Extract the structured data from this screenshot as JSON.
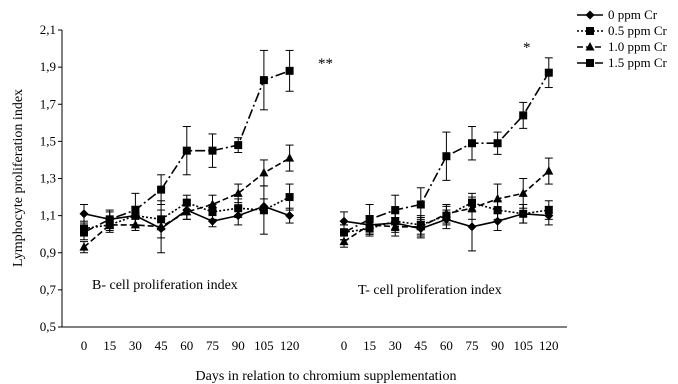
{
  "chart_data": {
    "type": "line",
    "xlabel": "Days in relation to chromium supplementation",
    "ylabel": "Lymphocyte proliferation index",
    "ylim": [
      0.5,
      2.1
    ],
    "yticks": [
      "0,5",
      "0,7",
      "0,9",
      "1,1",
      "1,3",
      "1,5",
      "1,7",
      "1,9",
      "2,1"
    ],
    "grid": false,
    "legend_position": "top-right",
    "series_legend": [
      {
        "name": "0 ppm Cr",
        "marker": "diamond",
        "dash": "solid"
      },
      {
        "name": "0.5 ppm Cr",
        "marker": "square",
        "dash": "dotted"
      },
      {
        "name": "1.0 ppm Cr",
        "marker": "triangle",
        "dash": "dashed"
      },
      {
        "name": "1.5 ppm Cr",
        "marker": "square",
        "dash": "dashdot"
      }
    ],
    "panels": [
      {
        "label": "B- cell proliferation index",
        "significance": "**",
        "x": [
          "0",
          "15",
          "30",
          "45",
          "60",
          "75",
          "90",
          "105",
          "120"
        ],
        "series": [
          {
            "name": "0 ppm Cr",
            "values": [
              1.11,
              1.08,
              1.1,
              1.03,
              1.13,
              1.07,
              1.1,
              1.15,
              1.1
            ],
            "errors": [
              0.05,
              0.05,
              0.05,
              0.05,
              0.05,
              0.03,
              0.05,
              0.04,
              0.04
            ]
          },
          {
            "name": "0.5 ppm Cr",
            "values": [
              1.03,
              1.05,
              1.1,
              1.08,
              1.17,
              1.12,
              1.14,
              1.13,
              1.2
            ],
            "errors": [
              0.04,
              0.04,
              0.05,
              0.05,
              0.04,
              0.04,
              0.05,
              0.13,
              0.07
            ]
          },
          {
            "name": "1.0 ppm Cr",
            "values": [
              0.93,
              1.05,
              1.05,
              1.04,
              1.12,
              1.16,
              1.22,
              1.33,
              1.41
            ],
            "errors": [
              0.03,
              0.03,
              0.03,
              0.14,
              0.04,
              0.05,
              0.05,
              0.07,
              0.07
            ]
          },
          {
            "name": "1.5 ppm Cr",
            "values": [
              1.01,
              1.08,
              1.13,
              1.24,
              1.45,
              1.45,
              1.48,
              1.83,
              1.88
            ],
            "errors": [
              0.04,
              0.04,
              0.09,
              0.08,
              0.13,
              0.09,
              0.04,
              0.16,
              0.11
            ]
          }
        ]
      },
      {
        "label": "T- cell proliferation index",
        "significance": "*",
        "x": [
          "0",
          "15",
          "30",
          "45",
          "60",
          "75",
          "90",
          "105",
          "120"
        ],
        "series": [
          {
            "name": "0 ppm Cr",
            "values": [
              1.07,
              1.05,
              1.06,
              1.03,
              1.08,
              1.04,
              1.07,
              1.11,
              1.1
            ],
            "errors": [
              0.05,
              0.05,
              0.05,
              0.05,
              0.05,
              0.13,
              0.05,
              0.05,
              0.05
            ]
          },
          {
            "name": "0.5 ppm Cr",
            "values": [
              1.01,
              1.03,
              1.07,
              1.05,
              1.1,
              1.17,
              1.13,
              1.11,
              1.13
            ],
            "errors": [
              0.04,
              0.04,
              0.05,
              0.05,
              0.05,
              0.05,
              0.05,
              0.05,
              0.05
            ]
          },
          {
            "name": "1.0 ppm Cr",
            "values": [
              0.96,
              1.05,
              1.04,
              1.04,
              1.11,
              1.14,
              1.19,
              1.22,
              1.34
            ],
            "errors": [
              0.03,
              0.05,
              0.05,
              0.05,
              0.05,
              0.06,
              0.08,
              0.08,
              0.07
            ]
          },
          {
            "name": "1.5 ppm Cr",
            "values": [
              1.01,
              1.08,
              1.13,
              1.16,
              1.42,
              1.49,
              1.49,
              1.64,
              1.87
            ],
            "errors": [
              0.04,
              0.08,
              0.08,
              0.09,
              0.13,
              0.09,
              0.06,
              0.07,
              0.08
            ]
          }
        ]
      }
    ]
  }
}
